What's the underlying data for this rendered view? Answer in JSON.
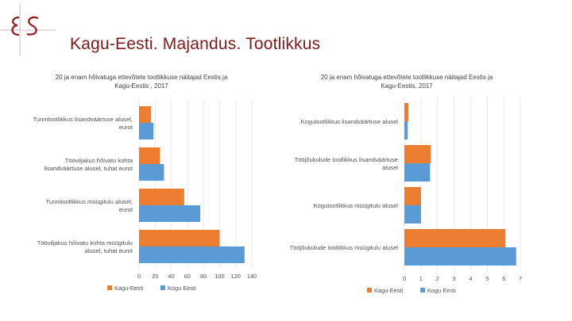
{
  "slide": {
    "title": "Kagu-Eesti. Majandus. Tootlikkus",
    "logo_text": "ES"
  },
  "colors": {
    "kagu_eesti": "#ED7D31",
    "kogu_eesti": "#5B9BD5",
    "title": "#7A1A1A",
    "logo": "#8B1E1E",
    "grid": "#E0E0E0"
  },
  "chart_data": [
    {
      "type": "bar",
      "orientation": "horizontal",
      "title_lines": [
        "20 ja enam hõivatuga ettevõtete tootlikkuse näitajad Eestis ja",
        "Kagu-Eestis , 2017"
      ],
      "categories": [
        [
          "Tunnitootlikkus lisandväärtuse alusel,",
          "eurot"
        ],
        [
          "Tööviljakus hõivatu kohta",
          "lisandväärtuse alusel, tuhat eurot"
        ],
        [
          "Tunnitootlikkus müügitulu alusel,",
          "eurot"
        ],
        [
          "Tööviljakus hõivatu kohta müügitulu",
          "alusel, tuhat eurot"
        ]
      ],
      "series": [
        {
          "name": "Kagu-Eesti",
          "values": [
            15,
            26,
            56,
            100
          ]
        },
        {
          "name": "Kogu Eesti",
          "values": [
            18,
            31,
            76,
            131
          ]
        }
      ],
      "xlim": [
        0,
        140
      ],
      "xticks": [
        "0",
        "20",
        "40",
        "60",
        "80",
        "100",
        "120",
        "140"
      ],
      "grid": true,
      "legend": "bottom-left"
    },
    {
      "type": "bar",
      "orientation": "horizontal",
      "title_lines": [
        "20 ja enam hõivatuga ettevõtete tootlikkuse näitajad Eestis ja",
        "Kagu-Eestis, 2017"
      ],
      "categories": [
        [
          "Kogutootlikkus lisandväärtuse alusel"
        ],
        [
          "Tööjõukulude tootlikkus lisandväärtuse",
          "alusel"
        ],
        [
          "Kogutootlikkus müügitulu alusel"
        ],
        [
          "Tööjõukulude tootlikkus müügitulu alusel"
        ]
      ],
      "series": [
        {
          "name": "Kagu-Eesti",
          "values": [
            0.25,
            1.6,
            1.0,
            6.1
          ]
        },
        {
          "name": "Kogu Eesti",
          "values": [
            0.2,
            1.55,
            1.0,
            6.75
          ]
        }
      ],
      "xlim": [
        0,
        7
      ],
      "xticks": [
        "0",
        "1",
        "2",
        "3",
        "4",
        "5",
        "6",
        "7"
      ],
      "grid": true,
      "legend": "bottom-left"
    }
  ]
}
